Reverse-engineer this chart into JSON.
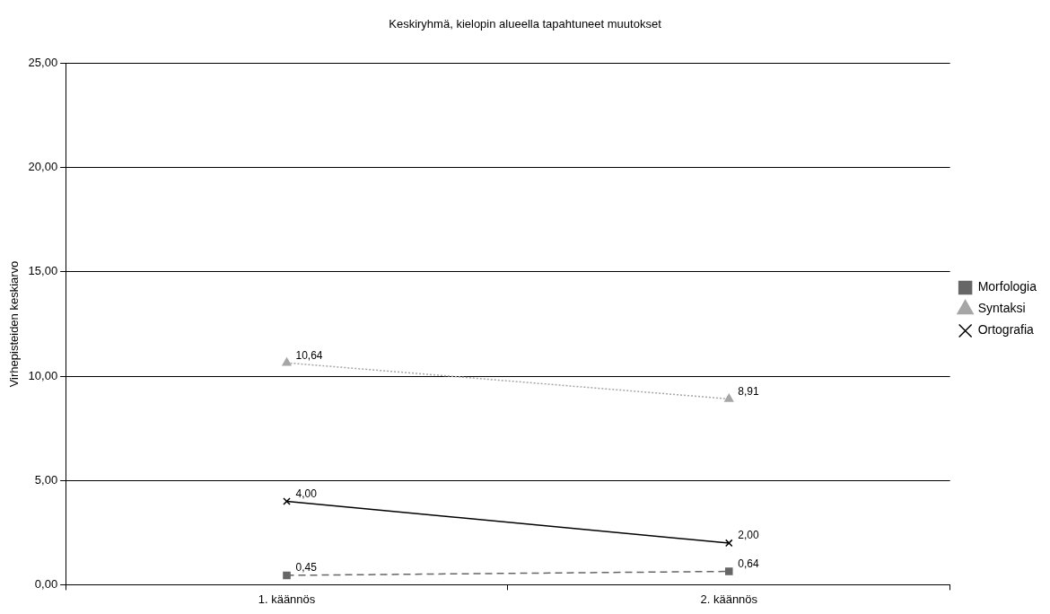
{
  "chart_data": {
    "type": "line",
    "title": "Keskiryhmä, kielopin alueella tapahtuneet muutokset",
    "ylabel": "Virhepisteiden keskiarvo",
    "categories": [
      "1. käännös",
      "2. käännös"
    ],
    "series": [
      {
        "name": "Morfologia",
        "color": "#666666",
        "values": [
          0.45,
          0.64
        ],
        "value_labels": [
          "0,45",
          "0,64"
        ],
        "marker": "square",
        "line_style": "dashed"
      },
      {
        "name": "Syntaksi",
        "color": "#a6a6a6",
        "values": [
          10.64,
          8.91
        ],
        "value_labels": [
          "10,64",
          "8,91"
        ],
        "marker": "triangle",
        "line_style": "dotted"
      },
      {
        "name": "Ortografia",
        "color": "#000000",
        "values": [
          4.0,
          2.0
        ],
        "value_labels": [
          "4,00",
          "2,00"
        ],
        "marker": "cross",
        "line_style": "solid"
      }
    ],
    "ylim": [
      0,
      25
    ],
    "yticks": [
      {
        "value": 0,
        "label": "0,00"
      },
      {
        "value": 5,
        "label": "5,00"
      },
      {
        "value": 10,
        "label": "10,00"
      },
      {
        "value": 15,
        "label": "15,00"
      },
      {
        "value": 20,
        "label": "20,00"
      },
      {
        "value": 25,
        "label": "25,00"
      }
    ],
    "grid": "y",
    "legend": "right"
  }
}
